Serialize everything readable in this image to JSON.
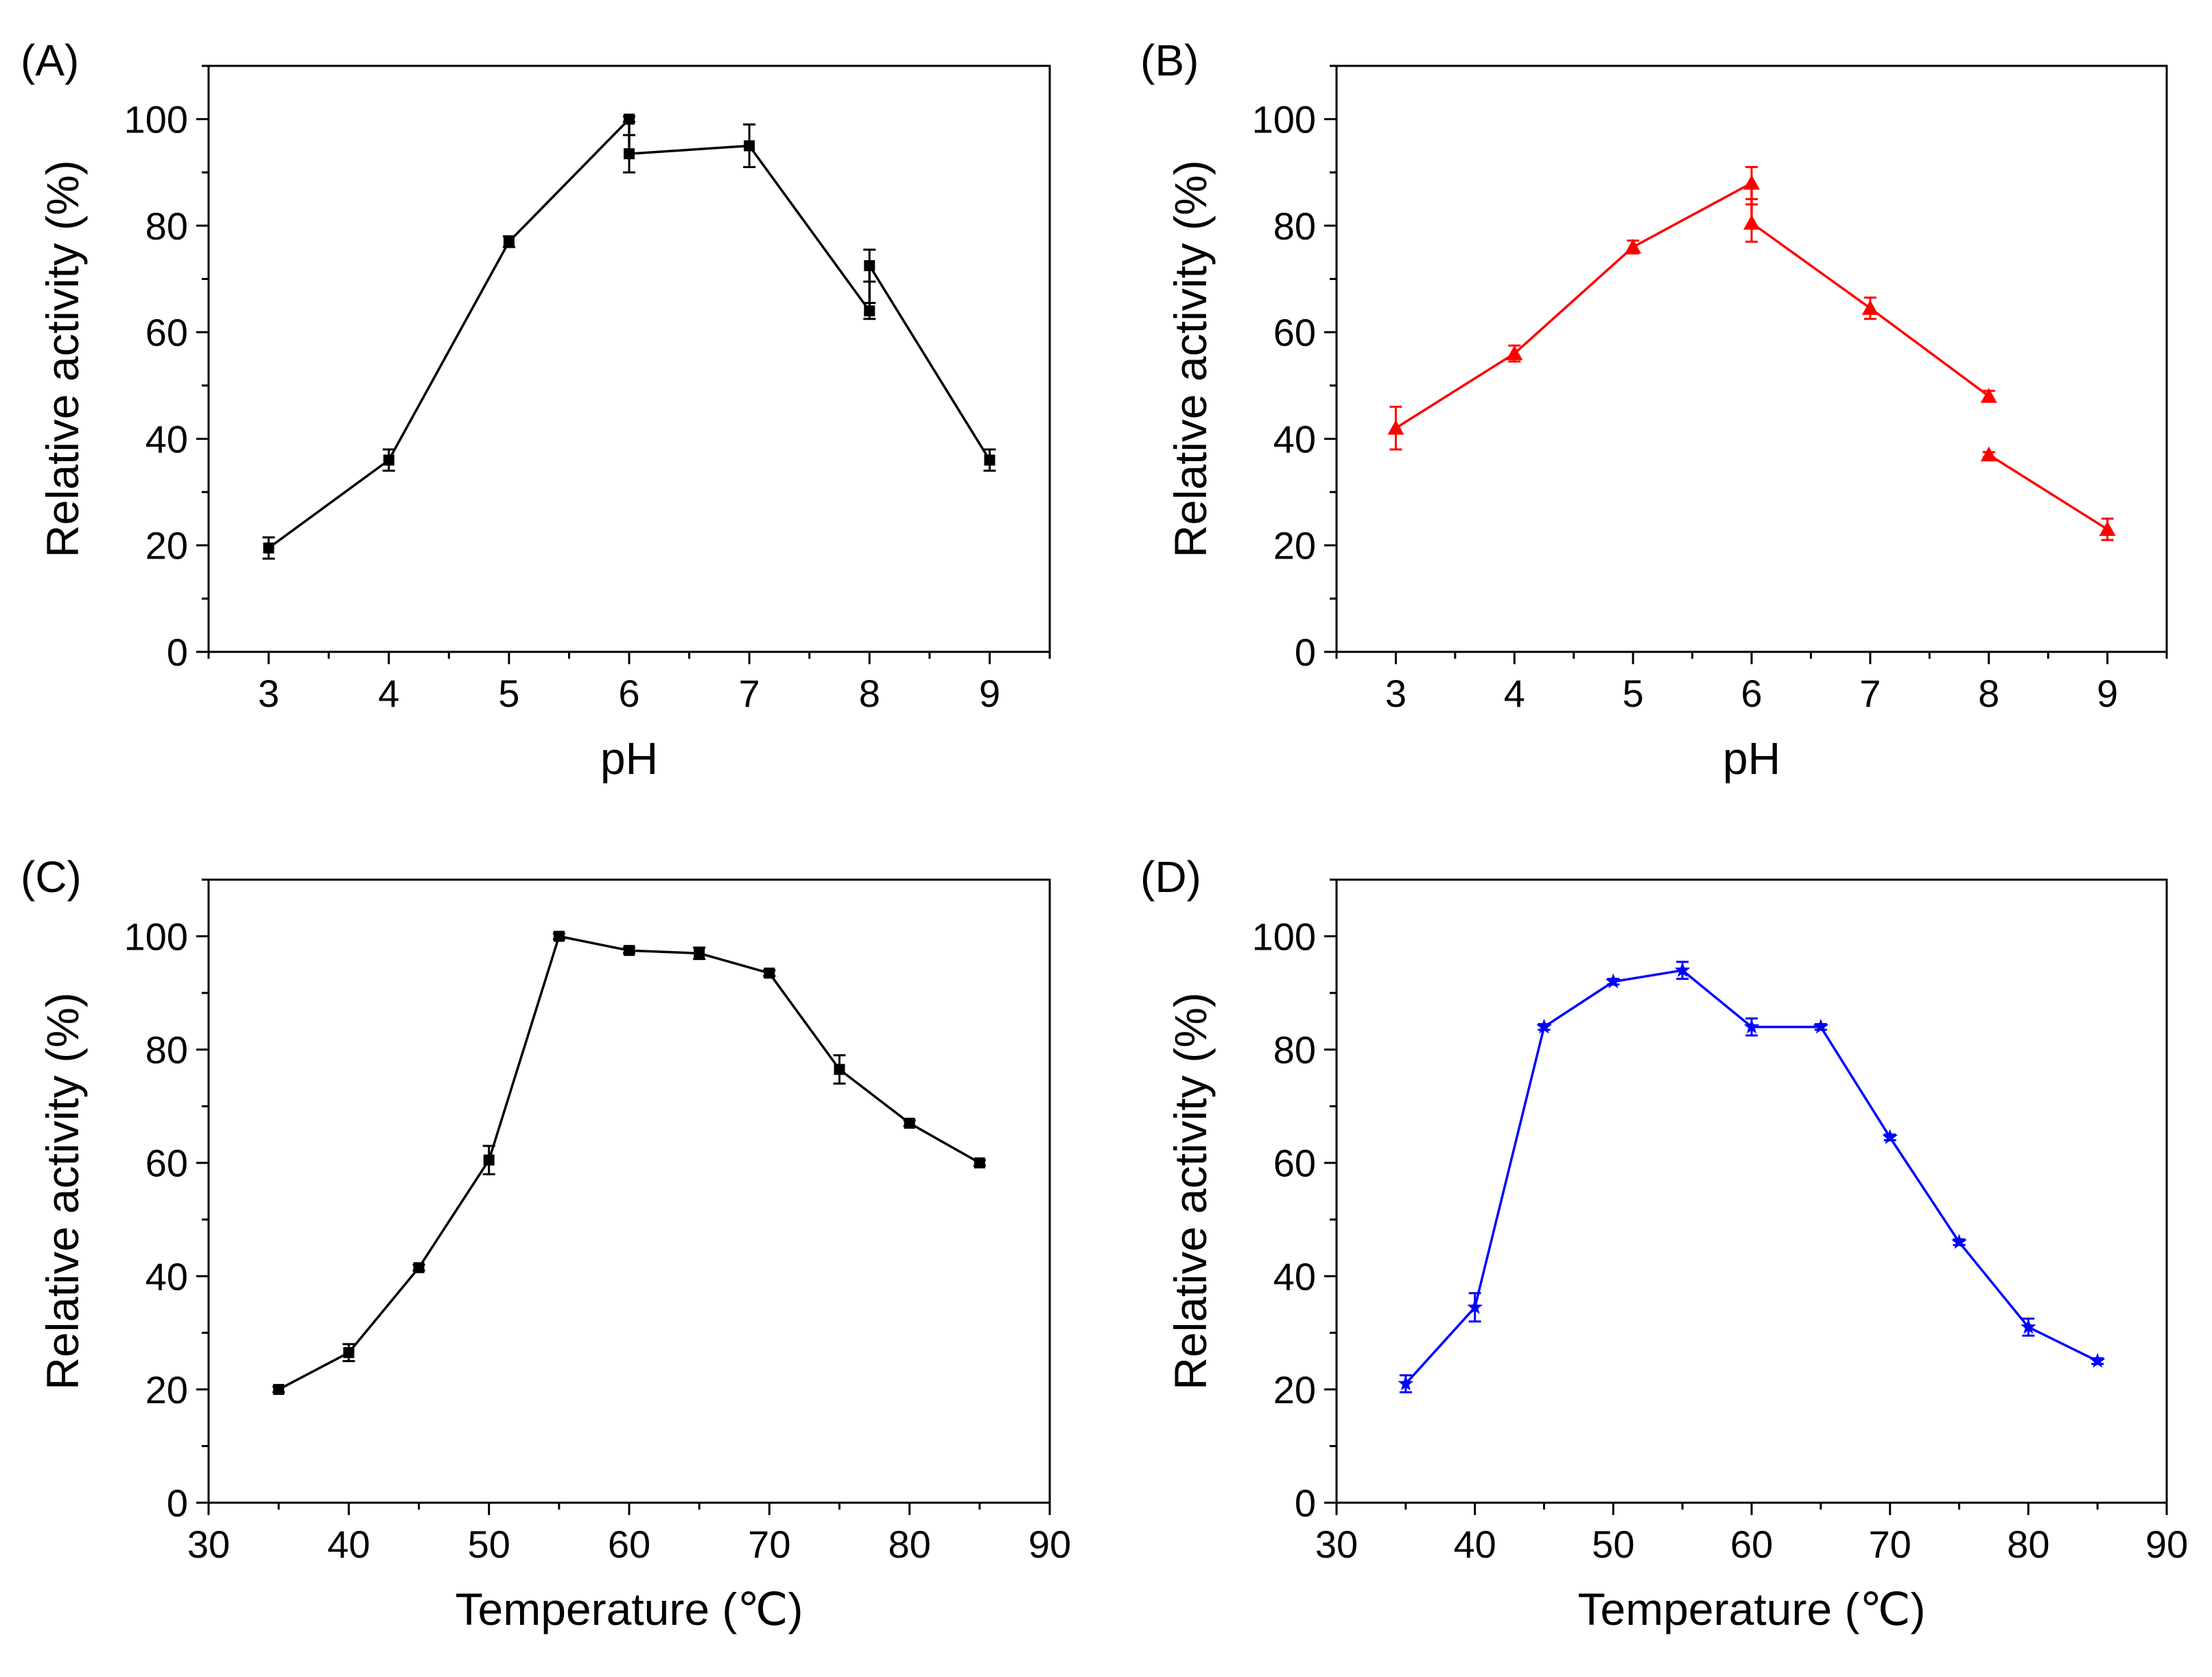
{
  "chart_data": [
    {
      "panel_label": "(A)",
      "type": "line",
      "xlabel": "pH",
      "ylabel": "Relative activity (%)",
      "xlim": [
        2.5,
        9.5
      ],
      "ylim": [
        0,
        110
      ],
      "xticks": [
        3,
        4,
        5,
        6,
        7,
        8,
        9
      ],
      "yticks": [
        0,
        20,
        40,
        60,
        80,
        100
      ],
      "grid": false,
      "marker": "square",
      "color": "#000000",
      "series": [
        {
          "x": [
            3,
            4,
            5,
            6,
            6,
            7,
            8,
            8,
            9
          ],
          "y": [
            19.5,
            36,
            77,
            100,
            93.5,
            95,
            64,
            72.5,
            36
          ],
          "err": [
            2,
            2,
            1,
            0.5,
            3.5,
            4,
            1.5,
            3,
            2
          ]
        }
      ]
    },
    {
      "panel_label": "(B)",
      "type": "line",
      "xlabel": "pH",
      "ylabel": "Relative activity (%)",
      "xlim": [
        2.5,
        9.5
      ],
      "ylim": [
        0,
        110
      ],
      "xticks": [
        3,
        4,
        5,
        6,
        7,
        8,
        9
      ],
      "yticks": [
        0,
        20,
        40,
        60,
        80,
        100
      ],
      "grid": false,
      "marker": "triangle",
      "color": "#ff0000",
      "series": [
        {
          "x": [
            3,
            4,
            5,
            6,
            6,
            7,
            8
          ],
          "y": [
            42,
            56,
            76,
            88,
            80.5,
            64.5,
            48
          ],
          "err": [
            4,
            1.5,
            1.2,
            3,
            3.5,
            2,
            1
          ]
        },
        {
          "x": [
            8,
            9
          ],
          "y": [
            37,
            23
          ],
          "err": [
            0.5,
            2
          ]
        }
      ]
    },
    {
      "panel_label": "(C)",
      "type": "line",
      "xlabel": "Temperature (℃)",
      "ylabel": "Relative activity (%)",
      "xlim": [
        30,
        90
      ],
      "ylim": [
        0,
        110
      ],
      "xticks": [
        30,
        40,
        50,
        60,
        70,
        80,
        90
      ],
      "yticks": [
        0,
        20,
        40,
        60,
        80,
        100
      ],
      "grid": false,
      "marker": "square",
      "color": "#000000",
      "series": [
        {
          "x": [
            35,
            40,
            45,
            50,
            55,
            60,
            65,
            70,
            75,
            80,
            85
          ],
          "y": [
            20,
            26.5,
            41.5,
            60.5,
            100,
            97.5,
            97,
            93.5,
            76.5,
            67,
            60
          ],
          "err": [
            0.5,
            1.5,
            0.5,
            2.5,
            0.5,
            0.5,
            1,
            0.5,
            2.5,
            0.5,
            0.5
          ]
        }
      ]
    },
    {
      "panel_label": "(D)",
      "type": "line",
      "xlabel": "Temperature (℃)",
      "ylabel": "Relative activity (%)",
      "xlim": [
        30,
        90
      ],
      "ylim": [
        0,
        110
      ],
      "xticks": [
        30,
        40,
        50,
        60,
        70,
        80,
        90
      ],
      "yticks": [
        0,
        20,
        40,
        60,
        80,
        100
      ],
      "grid": false,
      "marker": "star",
      "color": "#0000ff",
      "series": [
        {
          "x": [
            35,
            40,
            45,
            50,
            55,
            60,
            65,
            70,
            75,
            80,
            85
          ],
          "y": [
            21,
            34.5,
            84,
            92,
            94,
            84,
            84,
            64.5,
            46,
            31,
            25
          ],
          "err": [
            1.5,
            2.5,
            0.5,
            0.5,
            1.5,
            1.5,
            0.5,
            0.5,
            0.5,
            1.5,
            0.5
          ]
        }
      ]
    }
  ]
}
